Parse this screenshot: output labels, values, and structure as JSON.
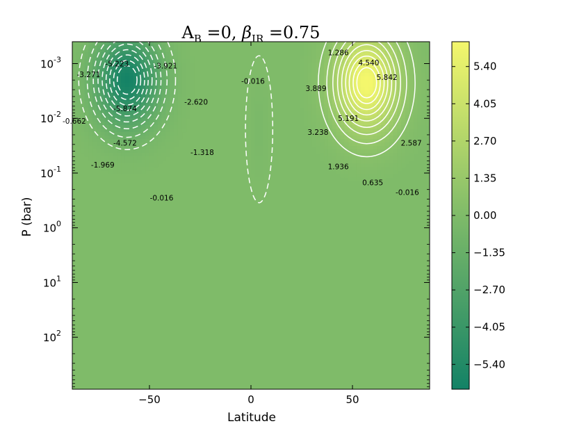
{
  "chart_data": {
    "type": "contour",
    "title_parts": {
      "a": "A",
      "a_sub": "B",
      "eq1": " =0, ",
      "beta": "β",
      "beta_sub": "IR",
      "eq2": " =0.75"
    },
    "xlabel": "Latitude",
    "ylabel": "P (bar)",
    "xlim": [
      -88,
      88
    ],
    "ylog10lim": [
      -3.4,
      2.95
    ],
    "x_ticks": [
      {
        "value": -50,
        "label": "−50"
      },
      {
        "value": 0,
        "label": "0"
      },
      {
        "value": 50,
        "label": "50"
      }
    ],
    "y_ticks": [
      {
        "exp": -3,
        "base": "10",
        "sup": "-3"
      },
      {
        "exp": -2,
        "base": "10",
        "sup": "-2"
      },
      {
        "exp": -1,
        "base": "10",
        "sup": "-1"
      },
      {
        "exp": 0,
        "base": "10",
        "sup": "0"
      },
      {
        "exp": 1,
        "base": "10",
        "sup": "1"
      },
      {
        "exp": 2,
        "base": "10",
        "sup": "2"
      }
    ],
    "colorbar": {
      "range": [
        -6.3,
        6.3
      ],
      "ticks": [
        "5.40",
        "4.05",
        "2.70",
        "1.35",
        "0.00",
        "−1.35",
        "−2.70",
        "−4.05",
        "−5.40"
      ],
      "tick_values": [
        5.4,
        4.05,
        2.7,
        1.35,
        0.0,
        -1.35,
        -2.7,
        -4.05,
        -5.4
      ],
      "colors": {
        "low": "#138266",
        "mid": "#7fbb69",
        "high": "#f4f76c"
      }
    },
    "cells": [
      {
        "name": "southern-cell",
        "lat": -61,
        "logp": -2.7,
        "sigma_lat": 15,
        "sigma_logp": 0.8,
        "amplitude": -6.2
      },
      {
        "name": "northern-cell",
        "lat": 57,
        "logp": -2.65,
        "sigma_lat": 15,
        "sigma_logp": 0.85,
        "amplitude": 6.4
      },
      {
        "name": "equatorial-cell",
        "lat": 4,
        "logp": -1.8,
        "sigma_lat": 4,
        "sigma_logp": 0.8,
        "amplitude": -0.25
      }
    ],
    "contour_labels": [
      {
        "text": "-5.223",
        "lat": -66,
        "logp": -3.0
      },
      {
        "text": "-3.921",
        "lat": -42,
        "logp": -2.96
      },
      {
        "text": "-3.271",
        "lat": -80,
        "logp": -2.8
      },
      {
        "text": "-5.874",
        "lat": -62,
        "logp": -2.18
      },
      {
        "text": "-2.620",
        "lat": -27,
        "logp": -2.3
      },
      {
        "text": "-0.662",
        "lat": -87,
        "logp": -1.95
      },
      {
        "text": "-4.572",
        "lat": -62,
        "logp": -1.55
      },
      {
        "text": "-1.318",
        "lat": -24,
        "logp": -1.38
      },
      {
        "text": "-1.969",
        "lat": -73,
        "logp": -1.15
      },
      {
        "text": "-0.016",
        "lat": -44,
        "logp": -0.55
      },
      {
        "text": "-0.016",
        "lat": 1,
        "logp": -2.68
      },
      {
        "text": "1.286",
        "lat": 43,
        "logp": -3.2
      },
      {
        "text": "4.540",
        "lat": 58,
        "logp": -3.02
      },
      {
        "text": "5.842",
        "lat": 67,
        "logp": -2.75
      },
      {
        "text": "3.889",
        "lat": 32,
        "logp": -2.55
      },
      {
        "text": "5.191",
        "lat": 48,
        "logp": -2.0
      },
      {
        "text": "3.238",
        "lat": 33,
        "logp": -1.75
      },
      {
        "text": "2.587",
        "lat": 79,
        "logp": -1.55
      },
      {
        "text": "1.936",
        "lat": 43,
        "logp": -1.12
      },
      {
        "text": "0.635",
        "lat": 60,
        "logp": -0.83
      },
      {
        "text": "-0.016",
        "lat": 77,
        "logp": -0.65
      }
    ]
  }
}
